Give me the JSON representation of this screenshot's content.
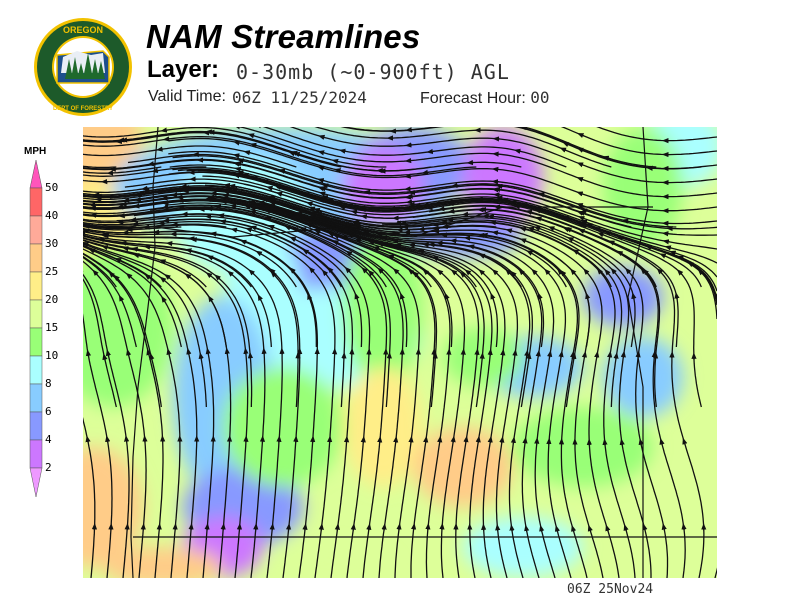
{
  "header": {
    "title": "NAM Streamlines",
    "layer_label": "Layer:",
    "layer_value": "0-30mb (~0-900ft) AGL",
    "valid_label": "Valid Time:",
    "valid_value": "06Z 11/25/2024",
    "forecast_label": "Forecast Hour:",
    "forecast_value": "00"
  },
  "logo": {
    "top_text": "OREGON",
    "bottom_text": "DEPARTMENT OF FORESTRY"
  },
  "legend": {
    "unit": "MPH",
    "ticks": [
      "50",
      "40",
      "30",
      "25",
      "20",
      "15",
      "10",
      "8",
      "6",
      "4",
      "2"
    ],
    "colors": {
      "over": "#ff55bb",
      "40-50": "#ff6666",
      "30-40": "#ffaa99",
      "25-30": "#ffcc88",
      "20-25": "#ffee88",
      "15-20": "#ddff99",
      "10-15": "#99ff77",
      "8-10": "#aaffff",
      "6-8": "#88ccff",
      "4-6": "#8899ff",
      "2-4": "#cc77ff",
      "under": "#ee99ff"
    }
  },
  "footer": {
    "stamp": "06Z 25Nov24"
  }
}
